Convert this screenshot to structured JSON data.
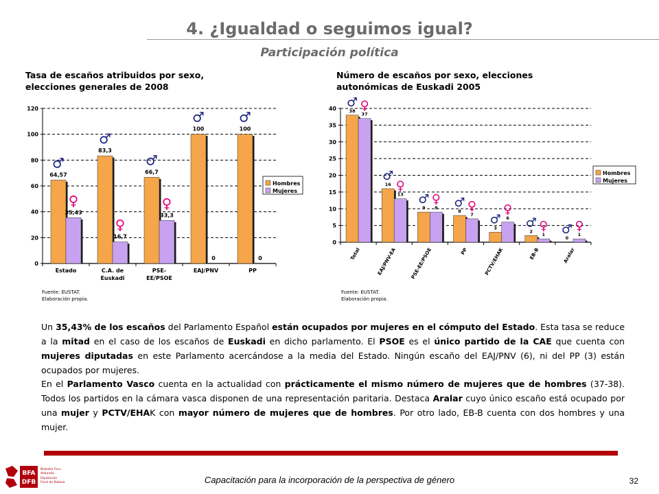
{
  "header": {
    "title": "4. ¿Igualdad o seguimos igual?",
    "subtitle": "Participación política"
  },
  "chart_data": [
    {
      "type": "bar",
      "title": "Tasa de escaños atribuidos por sexo, elecciones generales de 2008",
      "categories": [
        "Estado",
        "C.A. de Euskadi",
        "PSE-EE/PSOE",
        "EAJ/PNV",
        "PP"
      ],
      "series": [
        {
          "name": "Hombres",
          "values": [
            64.57,
            83.3,
            66.7,
            100,
            100
          ],
          "labels": [
            "64,57",
            "83,3",
            "66,7",
            "100",
            "100"
          ],
          "color": "#f5a54a"
        },
        {
          "name": "Mujeres",
          "values": [
            35.43,
            16.7,
            33.3,
            0,
            0
          ],
          "labels": [
            "35,43",
            "16,7",
            "33,3",
            "0",
            "0"
          ],
          "color": "#c8a2f0"
        }
      ],
      "ylim": [
        0,
        120
      ],
      "yticks": [
        "0",
        "20",
        "40",
        "60",
        "80",
        "100",
        "120"
      ],
      "grid": true,
      "legend": "right",
      "source": [
        "Fuente: EUSTAT.",
        "Elaboración propia."
      ]
    },
    {
      "type": "bar",
      "title": "Número de escaños por sexo, elecciones autonómicas de Euskadi 2005",
      "categories": [
        "Total",
        "EAJ/PNV-EA",
        "PSE-EE/PSOE",
        "PP",
        "PCTV/EHAK",
        "EB-B",
        "Aralar"
      ],
      "series": [
        {
          "name": "Hombres",
          "values": [
            38,
            16,
            9,
            8,
            3,
            2,
            0
          ],
          "labels": [
            "38",
            "16",
            "9",
            "8",
            "3",
            "2",
            "0"
          ],
          "color": "#f5a54a"
        },
        {
          "name": "Mujeres",
          "values": [
            37,
            13,
            9,
            7,
            6,
            1,
            1
          ],
          "labels": [
            "37",
            "13",
            "9",
            "7",
            "6",
            "1",
            "1"
          ],
          "color": "#c8a2f0"
        }
      ],
      "ylim": [
        0,
        40
      ],
      "yticks": [
        "0",
        "5",
        "10",
        "15",
        "20",
        "25",
        "30",
        "35",
        "40"
      ],
      "grid": true,
      "legend": "top-right",
      "source": [
        "Fuente: EUSTAT.",
        "Elaboración propia."
      ]
    }
  ],
  "symbols": {
    "male": "♂",
    "female": "♀",
    "male_color": "#1a237e",
    "female_color": "#e0007a"
  },
  "paragraphs": [
    [
      {
        "t": "Un "
      },
      {
        "t": "35,43% de los escaños",
        "b": true
      },
      {
        "t": " del Parlamento Español "
      },
      {
        "t": "están ocupados por mujeres en el cómputo del Estado",
        "b": true
      },
      {
        "t": ". Esta tasa se reduce a la "
      },
      {
        "t": "mitad",
        "b": true
      },
      {
        "t": " en el caso de los escaños de "
      },
      {
        "t": "Euskadi",
        "b": true
      },
      {
        "t": " en dicho parlamento. El "
      },
      {
        "t": "PSOE",
        "b": true
      },
      {
        "t": " es el "
      },
      {
        "t": "único partido de la CAE",
        "b": true
      },
      {
        "t": " que cuenta con "
      },
      {
        "t": "mujeres diputadas",
        "b": true
      },
      {
        "t": " en este Parlamento acercándose a la media del Estado. Ningún escaño del EAJ/PNV (6), ni del PP (3) están ocupados por mujeres."
      }
    ],
    [
      {
        "t": "En el "
      },
      {
        "t": "Parlamento Vasco",
        "b": true
      },
      {
        "t": " cuenta en la actualidad con "
      },
      {
        "t": "prácticamente el mismo número de mujeres que de hombres",
        "b": true
      },
      {
        "t": " (37-38). Todos los partidos en la cámara vasca disponen de una representación paritaria. Destaca "
      },
      {
        "t": "Aralar",
        "b": true
      },
      {
        "t": " cuyo único escaño está ocupado por una "
      },
      {
        "t": "mujer",
        "b": true
      },
      {
        "t": " y "
      },
      {
        "t": "PCTV/EHA",
        "b": true
      },
      {
        "t": "K con "
      },
      {
        "t": "mayor número de mujeres que de hombres",
        "b": true
      },
      {
        "t": ". Por otro lado, EB-B cuenta con dos hombres y una mujer."
      }
    ]
  ],
  "footer": {
    "text": "Capacitación para la incorporación de la perspectiva de género",
    "page": "32"
  },
  "logo": {
    "abbr": [
      "BFA",
      "DFB"
    ],
    "lines": [
      "Bizkaiko Foru",
      "Aldundia",
      "Diputación",
      "Foral de Bizkaia"
    ],
    "color": "#b0000c"
  }
}
